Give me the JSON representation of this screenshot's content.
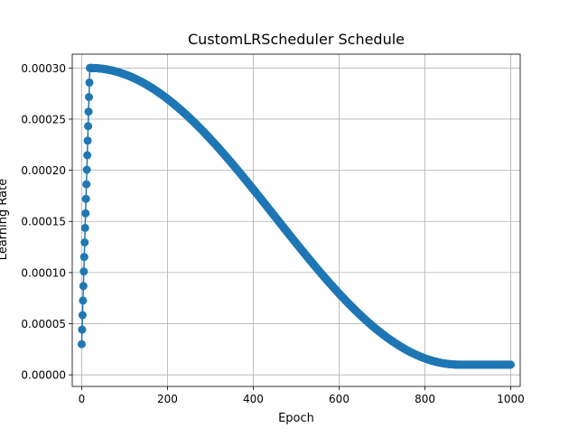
{
  "chart_data": {
    "type": "line",
    "title": "CustomLRScheduler Schedule",
    "xlabel": "Epoch",
    "ylabel": "Learning Rate",
    "xlim": [
      -22,
      1022
    ],
    "ylim": [
      -1.13e-05,
      0.0003135
    ],
    "xticks": [
      0,
      200,
      400,
      600,
      800,
      1000
    ],
    "xtick_labels": [
      "0",
      "200",
      "400",
      "600",
      "800",
      "1000"
    ],
    "yticks": [
      0,
      5e-05,
      0.0001,
      0.00015,
      0.0002,
      0.00025,
      0.0003
    ],
    "ytick_labels": [
      "0.00000",
      "0.00005",
      "0.00010",
      "0.00015",
      "0.00020",
      "0.00025",
      "0.00030"
    ],
    "grid": true,
    "legend": "none",
    "marker": "circle",
    "series": [
      {
        "color": "#1f77b4",
        "schedule": {
          "warmup_epochs": 20,
          "warmup_start_lr": 3e-05,
          "peak_lr": 0.0003,
          "decay": "cosine",
          "decay_end_epoch": 880,
          "min_lr": 1e-05,
          "last_epoch": 1000
        }
      }
    ]
  }
}
